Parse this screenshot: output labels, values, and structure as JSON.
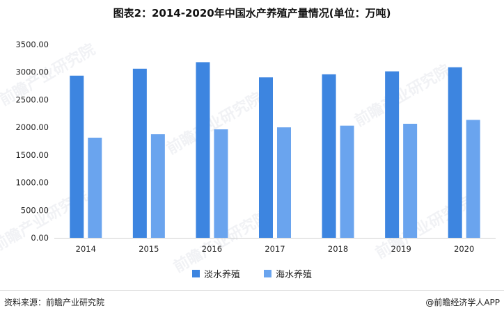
{
  "title": "图表2：2014-2020年中国水产养殖产量情况(单位：万吨)",
  "footer": {
    "source": "资料来源：前瞻产业研究院",
    "brand": "@前瞻经济学人APP"
  },
  "watermark": "前瞻产业研究院",
  "chart_data": {
    "type": "bar",
    "title": "图表2：2014-2020年中国水产养殖产量情况(单位：万吨)",
    "categories": [
      "2014",
      "2015",
      "2016",
      "2017",
      "2018",
      "2019",
      "2020"
    ],
    "series": [
      {
        "name": "淡水养殖",
        "color": "#3d85e0",
        "values": [
          2936,
          3062,
          3180,
          2905,
          2960,
          3014,
          3088
        ]
      },
      {
        "name": "海水养殖",
        "color": "#6aa4ee",
        "values": [
          1813,
          1875,
          1964,
          2000,
          2031,
          2065,
          2135
        ]
      }
    ],
    "yticks": [
      "0.00",
      "500.00",
      "1000.00",
      "1500.00",
      "2000.00",
      "2500.00",
      "3000.00",
      "3500.00"
    ],
    "ylim": [
      0,
      3500
    ],
    "grid": false,
    "legend": "bottom"
  }
}
